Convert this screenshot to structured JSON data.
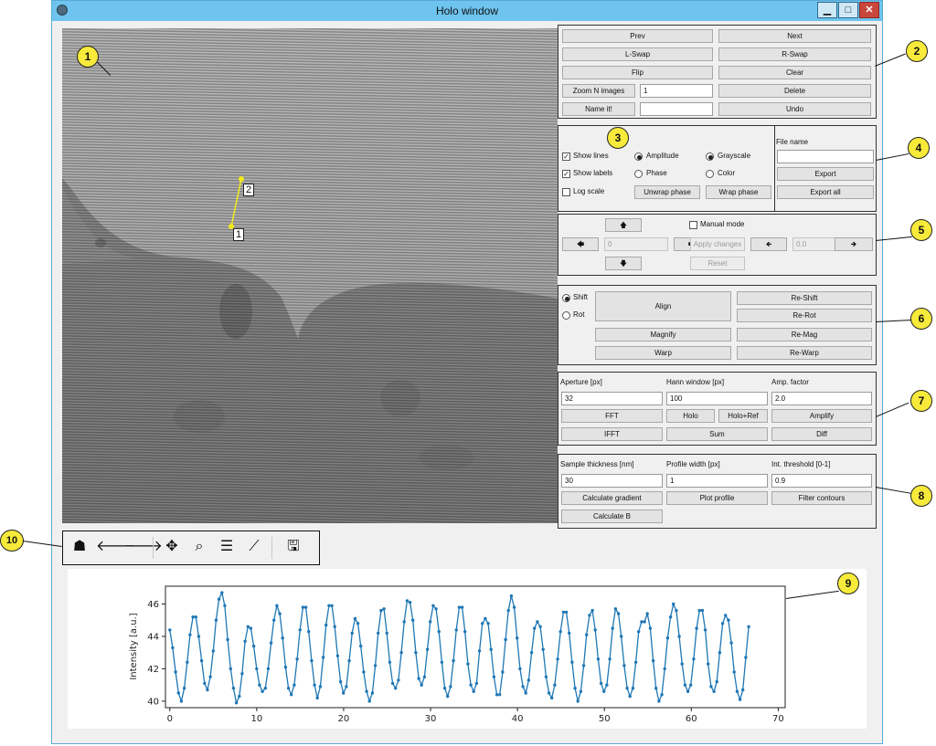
{
  "window": {
    "title": "Holo window",
    "minimize": "▁",
    "maximize": "□",
    "close": "✕"
  },
  "callouts": [
    "1",
    "2",
    "3",
    "4",
    "5",
    "6",
    "7",
    "8",
    "9",
    "10"
  ],
  "image": {
    "markers": [
      "1",
      "2"
    ]
  },
  "nav": {
    "prev": "Prev",
    "next": "Next",
    "lswap": "L-Swap",
    "rswap": "R-Swap",
    "flip": "Flip",
    "clear": "Clear",
    "zoom": "Zoom N images",
    "zoom_value": "1",
    "delete": "Delete",
    "name": "Name it!",
    "name_value": "",
    "undo": "Undo"
  },
  "display": {
    "show_lines": "Show lines",
    "show_labels": "Show labels",
    "log_scale": "Log scale",
    "amplitude": "Amplitude",
    "phase": "Phase",
    "grayscale": "Grayscale",
    "color": "Color",
    "unwrap": "Unwrap phase",
    "wrap": "Wrap phase"
  },
  "export": {
    "file_label": "File name",
    "file_value": "",
    "export": "Export",
    "export_all": "Export all"
  },
  "manual": {
    "manual_mode": "Manual mode",
    "shift_value": "0",
    "rot_value": "0.0",
    "apply": "Apply changes",
    "reset": "Reset",
    "up": "🡅",
    "down": "🡇",
    "left": "🡄",
    "right": "🡆",
    "rot_left": "🡸",
    "rot_right": "🡺"
  },
  "align": {
    "shift": "Shift",
    "rot": "Rot",
    "align": "Align",
    "reshift": "Re-Shift",
    "rerot": "Re-Rot",
    "magnify": "Magnify",
    "remag": "Re-Mag",
    "warp": "Warp",
    "rewarp": "Re-Warp"
  },
  "fft": {
    "aperture_label": "Aperture [px]",
    "aperture_value": "32",
    "hann_label": "Hann window [px]",
    "hann_value": "100",
    "amp_label": "Amp. factor",
    "amp_value": "2.0",
    "fft": "FFT",
    "holo": "Holo",
    "holo_ref": "Holo+Ref",
    "amplify": "Amplify",
    "ifft": "IFFT",
    "sum": "Sum",
    "diff": "Diff"
  },
  "analysis": {
    "thick_label": "Sample thickness [nm]",
    "thick_value": "30",
    "width_label": "Profile width [px]",
    "width_value": "1",
    "thresh_label": "Int. threshold [0-1]",
    "thresh_value": "0.9",
    "gradient": "Calculate gradient",
    "plot": "Plot profile",
    "contours": "Filter contours",
    "calc_b": "Calculate B"
  },
  "toolbar": {
    "home": "☗",
    "back": "🡐",
    "forward": "🡒",
    "pan": "✥",
    "zoom": "⌕",
    "configure": "☰",
    "edit": "⟋",
    "save": "🖫"
  },
  "chart_data": {
    "type": "line",
    "title": "",
    "xlabel": "",
    "ylabel": "Intensity [a.u.]",
    "xlim": [
      -0.5,
      70.8
    ],
    "ylim": [
      39.6,
      47.1
    ],
    "xticks": [
      "0",
      "10",
      "20",
      "30",
      "40",
      "50",
      "60",
      "70"
    ],
    "yticks": [
      "40",
      "42",
      "44",
      "46"
    ],
    "series_color": "#1f77b4",
    "x_step": 0.333,
    "values": [
      44.4,
      43.3,
      41.8,
      40.5,
      40.0,
      40.8,
      42.4,
      44.1,
      45.2,
      45.2,
      44.0,
      42.5,
      41.1,
      40.7,
      41.5,
      43.1,
      45.0,
      46.3,
      46.7,
      45.9,
      43.8,
      42.0,
      40.8,
      39.9,
      40.3,
      41.7,
      43.7,
      44.6,
      44.5,
      43.4,
      42.0,
      41.0,
      40.6,
      40.8,
      42.0,
      43.6,
      45.0,
      45.9,
      45.4,
      43.9,
      42.1,
      40.8,
      40.4,
      41.0,
      42.6,
      44.4,
      45.8,
      45.8,
      44.3,
      42.5,
      41.0,
      40.2,
      40.9,
      42.7,
      44.7,
      45.9,
      45.9,
      44.6,
      42.8,
      41.2,
      40.5,
      40.9,
      42.5,
      44.2,
      45.1,
      44.8,
      43.4,
      41.8,
      40.6,
      40.0,
      40.5,
      42.2,
      44.2,
      45.6,
      45.7,
      44.2,
      42.4,
      41.1,
      40.8,
      41.3,
      43.0,
      44.9,
      46.2,
      46.1,
      45.0,
      43.0,
      41.4,
      41.0,
      41.5,
      43.2,
      44.9,
      45.9,
      45.7,
      44.3,
      42.4,
      40.8,
      40.3,
      40.9,
      42.5,
      44.4,
      45.8,
      45.8,
      44.3,
      42.3,
      41.0,
      40.6,
      41.1,
      43.1,
      44.8,
      45.1,
      44.8,
      43.2,
      41.5,
      40.4,
      40.4,
      41.8,
      43.8,
      45.6,
      46.5,
      45.8,
      43.9,
      42.0,
      40.9,
      40.5,
      41.3,
      43.0,
      44.5,
      44.9,
      44.6,
      43.2,
      41.5,
      40.5,
      40.2,
      41.0,
      42.6,
      44.3,
      45.5,
      45.5,
      44.2,
      42.4,
      40.8,
      40.0,
      40.6,
      42.2,
      44.1,
      45.3,
      45.6,
      44.4,
      42.6,
      41.1,
      40.6,
      41.0,
      42.6,
      44.5,
      45.7,
      45.4,
      44.0,
      42.2,
      40.8,
      40.3,
      40.8,
      42.4,
      44.3,
      44.9,
      44.9,
      45.4,
      44.5,
      42.5,
      40.8,
      40.0,
      40.4,
      42.0,
      43.9,
      45.2,
      46.0,
      45.6,
      44.0,
      42.3,
      41.0,
      40.6,
      41.0,
      42.6,
      44.5,
      45.6,
      45.6,
      44.4,
      42.3,
      40.9,
      40.6,
      41.2,
      43.0,
      44.8,
      45.3,
      45.0,
      43.6,
      41.8,
      40.6,
      40.1,
      40.7,
      42.7,
      44.6
    ]
  }
}
